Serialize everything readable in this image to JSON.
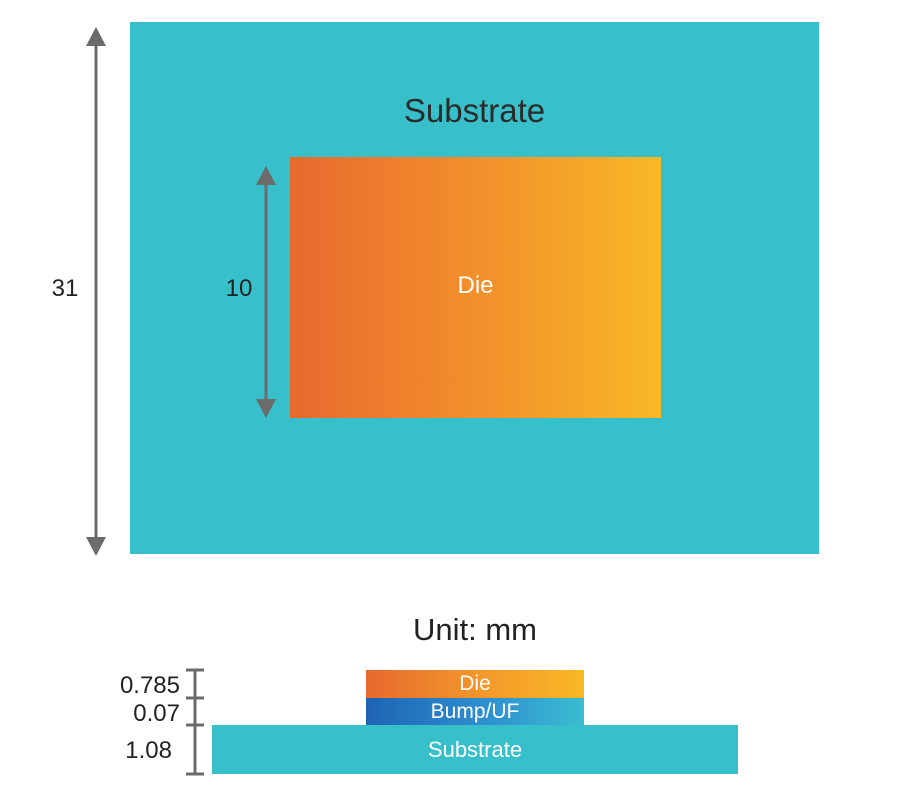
{
  "top_view": {
    "substrate_label": "Substrate",
    "die_label": "Die",
    "substrate_dimension": "31",
    "die_dimension": "10"
  },
  "unit_label": "Unit: mm",
  "cross_section": {
    "layers": [
      {
        "name": "Die",
        "thickness": "0.785"
      },
      {
        "name": "Bump/UF",
        "thickness": "0.07"
      },
      {
        "name": "Substrate",
        "thickness": "1.08"
      }
    ]
  },
  "colors": {
    "substrate": "#37bfca",
    "die_gradient_start": "#e66a2e",
    "die_gradient_end": "#f9b826",
    "bump_gradient_start": "#1f64b3",
    "bump_gradient_end": "#3bbdd0",
    "dimension_line": "#6b6b6b"
  }
}
